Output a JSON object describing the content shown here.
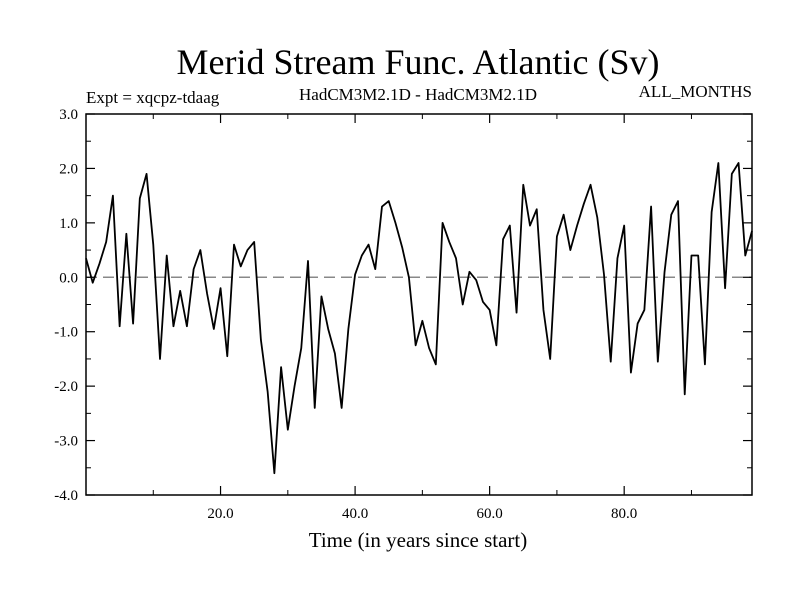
{
  "chart_data": {
    "type": "line",
    "title": "Merid Stream Func. Atlantic (Sv)",
    "subtitle_left": "Expt = xqcpz-tdaag",
    "subtitle_center": "HadCM3M2.1D - HadCM3M2.1D",
    "subtitle_right": "ALL_MONTHS",
    "xlabel": "Time (in years since start)",
    "ylabel": "",
    "xlim": [
      0,
      99
    ],
    "ylim": [
      -4.0,
      3.0
    ],
    "xticks": [
      20,
      40,
      60,
      80
    ],
    "xtick_labels": [
      "20.0",
      "40.0",
      "60.0",
      "80.0"
    ],
    "yticks": [
      -4,
      -3,
      -2,
      -1,
      0,
      1,
      2,
      3
    ],
    "ytick_labels": [
      "-4.0",
      "-3.0",
      "-2.0",
      "-1.0",
      "0.0",
      "1.0",
      "2.0",
      "3.0"
    ],
    "reference_line": {
      "y": 0.0,
      "style": "dashed",
      "color": "#888888"
    },
    "series": [
      {
        "name": "stream function",
        "color": "#000000",
        "x": [
          0,
          1,
          2,
          3,
          4,
          5,
          6,
          7,
          8,
          9,
          10,
          11,
          12,
          13,
          14,
          15,
          16,
          17,
          18,
          19,
          20,
          21,
          22,
          23,
          24,
          25,
          26,
          27,
          28,
          29,
          30,
          31,
          32,
          33,
          34,
          35,
          36,
          37,
          38,
          39,
          40,
          41,
          42,
          43,
          44,
          45,
          46,
          47,
          48,
          49,
          50,
          51,
          52,
          53,
          54,
          55,
          56,
          57,
          58,
          59,
          60,
          61,
          62,
          63,
          64,
          65,
          66,
          67,
          68,
          69,
          70,
          71,
          72,
          73,
          74,
          75,
          76,
          77,
          78,
          79,
          80,
          81,
          82,
          83,
          84,
          85,
          86,
          87,
          88,
          89,
          90,
          91,
          92,
          93,
          94,
          95,
          96,
          97,
          98,
          99
        ],
        "values": [
          0.35,
          -0.1,
          0.25,
          0.65,
          1.5,
          -0.9,
          0.8,
          -0.85,
          1.45,
          1.9,
          0.6,
          -1.5,
          0.4,
          -0.9,
          -0.25,
          -0.9,
          0.15,
          0.5,
          -0.3,
          -0.95,
          -0.2,
          -1.45,
          0.6,
          0.2,
          0.5,
          0.65,
          -1.15,
          -2.1,
          -3.6,
          -1.65,
          -2.8,
          -2.0,
          -1.3,
          0.3,
          -2.4,
          -0.35,
          -0.95,
          -1.4,
          -2.4,
          -0.95,
          0.05,
          0.4,
          0.6,
          0.15,
          1.3,
          1.4,
          1.0,
          0.55,
          0.0,
          -1.25,
          -0.8,
          -1.3,
          -1.6,
          1.0,
          0.65,
          0.35,
          -0.5,
          0.1,
          -0.05,
          -0.45,
          -0.6,
          -1.25,
          0.7,
          0.95,
          -0.65,
          1.7,
          0.95,
          1.25,
          -0.6,
          -1.5,
          0.75,
          1.15,
          0.5,
          0.95,
          1.35,
          1.7,
          1.1,
          0.05,
          -1.55,
          0.35,
          0.95,
          -1.75,
          -0.85,
          -0.6,
          1.3,
          -1.55,
          0.1,
          1.15,
          1.4,
          -2.15,
          0.4,
          0.4,
          -1.6,
          1.2,
          2.1,
          -0.2,
          1.9,
          2.1,
          0.4,
          0.85
        ]
      }
    ]
  }
}
